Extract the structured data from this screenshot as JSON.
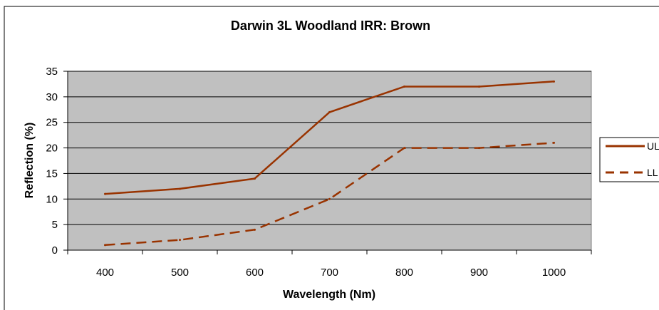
{
  "chart_data": {
    "type": "line",
    "title": "Darwin 3L Woodland IRR: Brown",
    "xlabel": "Wavelength (Nm)",
    "ylabel": "Reflection (%)",
    "x": [
      400,
      500,
      600,
      700,
      800,
      900,
      1000
    ],
    "xticks": [
      "400",
      "500",
      "600",
      "700",
      "800",
      "900",
      "1000"
    ],
    "ylim": [
      0,
      35
    ],
    "yticks": [
      "0",
      "5",
      "10",
      "15",
      "20",
      "25",
      "30",
      "35"
    ],
    "grid": "horizontal",
    "plot_background": "#c0c0c0",
    "legend_position": "right",
    "series": [
      {
        "name": "UL",
        "legend_text": "UL",
        "style": "solid",
        "color": "#993300",
        "values": [
          11,
          12,
          14,
          27,
          32,
          32,
          33
        ]
      },
      {
        "name": "LL",
        "legend_text": "LL",
        "style": "dashed",
        "color": "#993300",
        "values": [
          1,
          2,
          4,
          10,
          20,
          20,
          21
        ]
      }
    ]
  }
}
